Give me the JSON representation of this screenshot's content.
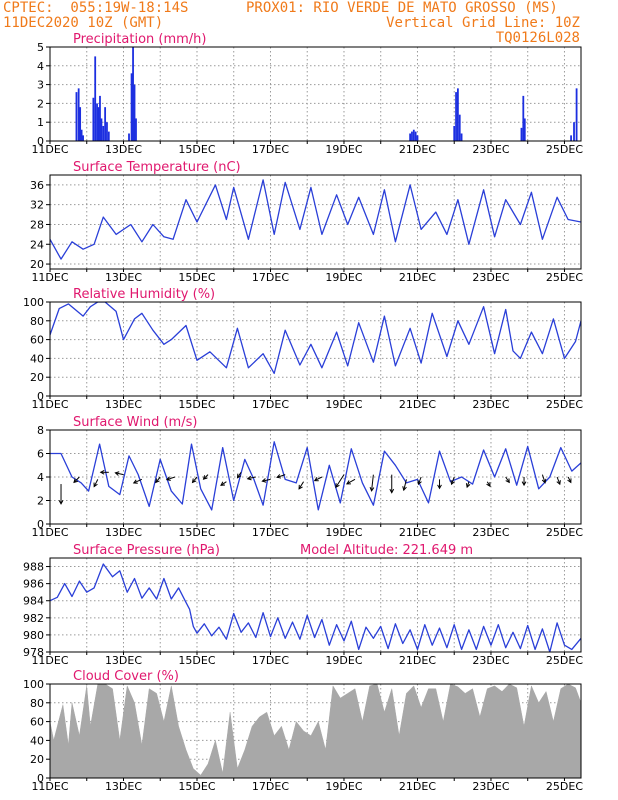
{
  "header": {
    "left_line1": "CPTEC:  055:19W-18:14S",
    "center_line1": "PROX01: RIO VERDE DE MATO GROSSO (MS)",
    "left_line2": "11DEC2020 10Z (GMT)",
    "right_line2": "Vertical Grid Line: 10Z",
    "right_line3": "TQ0126L028"
  },
  "colors": {
    "header": "#f07a1a",
    "title": "#e0186e",
    "line": "#2a3fd8",
    "bar": "#1c2fe0",
    "cloud": "#a8a8a8"
  },
  "x_tick_labels": [
    "11DEC",
    "13DEC",
    "15DEC",
    "17DEC",
    "19DEC",
    "21DEC",
    "23DEC",
    "25DEC"
  ],
  "chart_data": [
    {
      "type": "bar",
      "title": "Precipitation (mm/h)",
      "x_unit": "day since 11DEC 10Z",
      "ylim": [
        0,
        5
      ],
      "yticks": [
        0,
        1,
        2,
        3,
        4,
        5
      ],
      "points": [
        [
          0.72,
          2.6
        ],
        [
          0.78,
          2.8
        ],
        [
          0.82,
          1.8
        ],
        [
          0.86,
          0.6
        ],
        [
          0.9,
          0.3
        ],
        [
          1.18,
          2.3
        ],
        [
          1.23,
          4.5
        ],
        [
          1.28,
          2.0
        ],
        [
          1.32,
          1.8
        ],
        [
          1.36,
          2.4
        ],
        [
          1.4,
          1.2
        ],
        [
          1.45,
          0.8
        ],
        [
          1.5,
          1.8
        ],
        [
          1.55,
          1.0
        ],
        [
          1.6,
          0.5
        ],
        [
          2.15,
          0.4
        ],
        [
          2.22,
          3.6
        ],
        [
          2.26,
          5.0
        ],
        [
          2.3,
          3.0
        ],
        [
          2.34,
          1.2
        ],
        [
          9.8,
          0.4
        ],
        [
          9.85,
          0.5
        ],
        [
          9.9,
          0.6
        ],
        [
          9.95,
          0.5
        ],
        [
          10.0,
          0.3
        ],
        [
          11.0,
          0.8
        ],
        [
          11.05,
          2.6
        ],
        [
          11.1,
          2.8
        ],
        [
          11.15,
          1.4
        ],
        [
          11.2,
          0.4
        ],
        [
          12.83,
          0.7
        ],
        [
          12.88,
          2.4
        ],
        [
          12.92,
          1.2
        ],
        [
          14.18,
          0.3
        ],
        [
          14.26,
          1.0
        ],
        [
          14.33,
          2.8
        ]
      ]
    },
    {
      "type": "line",
      "title": "Surface Temperature (nC)",
      "ylim": [
        19,
        38
      ],
      "yticks": [
        20,
        24,
        28,
        32,
        36
      ],
      "x": [
        0,
        0.3,
        0.6,
        0.9,
        1.2,
        1.45,
        1.8,
        2.2,
        2.5,
        2.8,
        3.1,
        3.35,
        3.7,
        4.0,
        4.5,
        4.8,
        5.0,
        5.4,
        5.8,
        6.1,
        6.4,
        6.8,
        7.1,
        7.4,
        7.8,
        8.1,
        8.4,
        8.8,
        9.1,
        9.4,
        9.8,
        10.1,
        10.5,
        10.8,
        11.1,
        11.4,
        11.8,
        12.1,
        12.4,
        12.8,
        13.1,
        13.4,
        13.8,
        14.1,
        14.45
      ],
      "y": [
        25,
        21,
        24.5,
        23,
        24,
        29.5,
        26,
        28,
        24.5,
        28,
        25.5,
        25,
        33,
        28.5,
        36,
        29,
        35.5,
        25,
        37,
        26,
        36.5,
        27,
        35.5,
        26,
        34,
        28,
        33.5,
        26,
        35,
        24.5,
        36,
        27,
        30.5,
        26,
        33,
        24,
        35,
        25.5,
        33,
        28,
        34.5,
        25,
        33.5,
        29,
        28.5
      ]
    },
    {
      "type": "line",
      "title": "Relative Humidity (%)",
      "ylim": [
        0,
        100
      ],
      "yticks": [
        0,
        20,
        40,
        60,
        80,
        100
      ],
      "x": [
        0,
        0.25,
        0.5,
        0.9,
        1.1,
        1.3,
        1.5,
        1.8,
        2.0,
        2.3,
        2.5,
        2.8,
        3.1,
        3.3,
        3.7,
        4.0,
        4.35,
        4.8,
        5.1,
        5.4,
        5.8,
        6.1,
        6.4,
        6.8,
        7.1,
        7.4,
        7.8,
        8.1,
        8.4,
        8.8,
        9.1,
        9.4,
        9.8,
        10.1,
        10.4,
        10.8,
        11.1,
        11.4,
        11.8,
        12.1,
        12.4,
        12.6,
        12.8,
        13.1,
        13.4,
        13.7,
        14.0,
        14.3,
        14.45
      ],
      "y": [
        65,
        93,
        98,
        85,
        95,
        100,
        100,
        90,
        60,
        82,
        88,
        70,
        55,
        60,
        75,
        38,
        47,
        30,
        72,
        30,
        45,
        24,
        70,
        33,
        55,
        30,
        68,
        32,
        78,
        36,
        85,
        32,
        72,
        35,
        88,
        42,
        80,
        55,
        95,
        45,
        92,
        48,
        40,
        68,
        45,
        82,
        40,
        58,
        80
      ]
    },
    {
      "type": "line",
      "title": "Surface Wind (m/s)",
      "ylim": [
        0,
        8
      ],
      "yticks": [
        0,
        2,
        4,
        6,
        8
      ],
      "x": [
        0,
        0.3,
        0.6,
        0.85,
        1.05,
        1.35,
        1.6,
        1.9,
        2.15,
        2.4,
        2.7,
        3.0,
        3.3,
        3.6,
        3.85,
        4.1,
        4.4,
        4.7,
        5.0,
        5.3,
        5.55,
        5.8,
        6.1,
        6.4,
        6.7,
        7.0,
        7.3,
        7.6,
        7.9,
        8.2,
        8.5,
        8.8,
        9.1,
        9.4,
        9.7,
        10.0,
        10.3,
        10.6,
        10.9,
        11.2,
        11.5,
        11.8,
        12.1,
        12.4,
        12.7,
        13.0,
        13.3,
        13.6,
        13.9,
        14.2,
        14.45
      ],
      "y": [
        6,
        6,
        4,
        3.5,
        2.8,
        6.8,
        3.2,
        2.5,
        5.8,
        4.2,
        1.5,
        5.5,
        2.8,
        1.7,
        6.8,
        3,
        1.2,
        6.5,
        2,
        5.5,
        3.8,
        1.6,
        7,
        3.8,
        3.5,
        6.5,
        1.2,
        5,
        1.8,
        6.4,
        3.5,
        1.6,
        6.2,
        5,
        3.5,
        3.8,
        1.8,
        6.2,
        3.6,
        4,
        3.4,
        6.3,
        4,
        6.4,
        3.3,
        6.6,
        3,
        4,
        6.5,
        4.5,
        5.2
      ],
      "arrows": [
        [
          0.3,
          3.4,
          0,
          -2.2
        ],
        [
          0.8,
          4.0,
          -0.6,
          -0.6
        ],
        [
          1.3,
          3.8,
          -0.4,
          -0.8
        ],
        [
          1.6,
          4.4,
          -0.9,
          0
        ],
        [
          2.0,
          4.2,
          -0.9,
          0.2
        ],
        [
          2.5,
          3.8,
          -0.9,
          -0.4
        ],
        [
          3.0,
          4.0,
          -0.5,
          -0.6
        ],
        [
          3.4,
          4.0,
          -0.9,
          -0.3
        ],
        [
          4.0,
          4.0,
          -0.5,
          -0.6
        ],
        [
          4.3,
          4.2,
          -0.5,
          -0.5
        ],
        [
          4.8,
          3.6,
          -0.6,
          -0.4
        ],
        [
          5.2,
          4.4,
          -0.4,
          -0.6
        ],
        [
          5.6,
          4.0,
          -0.9,
          -0.2
        ],
        [
          6.0,
          3.8,
          -0.9,
          -0.2
        ],
        [
          6.4,
          4.2,
          -0.9,
          -0.3
        ],
        [
          6.9,
          3.6,
          -0.5,
          -0.8
        ],
        [
          7.4,
          4.0,
          -0.8,
          -0.4
        ],
        [
          8.0,
          4.2,
          -0.9,
          -1.4
        ],
        [
          8.3,
          3.8,
          -0.9,
          -0.5
        ],
        [
          8.8,
          4.2,
          -0.2,
          -1.8
        ],
        [
          9.3,
          4.2,
          0,
          -2.0
        ],
        [
          9.7,
          3.8,
          -0.3,
          -1.2
        ],
        [
          10.1,
          4.0,
          -0.3,
          -0.8
        ],
        [
          10.6,
          3.8,
          0,
          -1.0
        ],
        [
          11.0,
          4.0,
          -0.3,
          -0.8
        ],
        [
          11.4,
          3.6,
          -0.2,
          -0.6
        ],
        [
          11.9,
          3.6,
          0.3,
          -0.5
        ],
        [
          12.4,
          4.0,
          0.4,
          -0.6
        ],
        [
          12.9,
          4.0,
          0,
          -0.9
        ],
        [
          13.4,
          4.2,
          0.3,
          -0.9
        ],
        [
          13.8,
          4.0,
          0.3,
          -0.8
        ],
        [
          14.1,
          4.0,
          0.3,
          -0.6
        ]
      ]
    },
    {
      "type": "line",
      "title": "Surface Pressure (hPa)",
      "annotation": "Model Altitude: 221.649  m",
      "ylim": [
        978,
        989
      ],
      "yticks": [
        978,
        980,
        982,
        984,
        986,
        988
      ],
      "x": [
        0,
        0.2,
        0.4,
        0.6,
        0.8,
        1.0,
        1.2,
        1.45,
        1.7,
        1.9,
        2.1,
        2.3,
        2.5,
        2.7,
        2.9,
        3.1,
        3.3,
        3.5,
        3.7,
        3.8,
        3.9,
        4.0,
        4.2,
        4.4,
        4.6,
        4.8,
        5.0,
        5.2,
        5.4,
        5.6,
        5.8,
        6.0,
        6.2,
        6.4,
        6.6,
        6.8,
        7.0,
        7.2,
        7.4,
        7.6,
        7.8,
        8.0,
        8.2,
        8.4,
        8.6,
        8.8,
        9.0,
        9.2,
        9.4,
        9.6,
        9.8,
        10.0,
        10.2,
        10.4,
        10.6,
        10.8,
        11.0,
        11.2,
        11.4,
        11.6,
        11.8,
        12.0,
        12.2,
        12.4,
        12.6,
        12.8,
        13.0,
        13.2,
        13.4,
        13.6,
        13.8,
        14.0,
        14.2,
        14.45
      ],
      "y": [
        984,
        984.4,
        986,
        984.5,
        986.3,
        985,
        985.5,
        988.3,
        986.8,
        987.5,
        985,
        986.6,
        984.3,
        985.5,
        984.2,
        986.6,
        984.2,
        985.5,
        983.8,
        983,
        981,
        980.2,
        981.3,
        979.9,
        980.9,
        979.5,
        982.5,
        980.3,
        981.4,
        979.7,
        982.6,
        979.8,
        982,
        979.6,
        981.5,
        979.5,
        982.3,
        979.7,
        981.8,
        978.8,
        981.2,
        979.3,
        981.6,
        978.3,
        980.9,
        979.6,
        981,
        978.4,
        981.3,
        979,
        980.6,
        978.3,
        981.2,
        978.8,
        980.8,
        978.5,
        981.2,
        978.3,
        980.6,
        978.3,
        981,
        978.8,
        981.2,
        978.5,
        980.3,
        978.4,
        981.1,
        978.3,
        980.7,
        978,
        981.4,
        978.8,
        978.3,
        979.6
      ]
    },
    {
      "type": "area",
      "title": "Cloud Cover (%)",
      "ylim": [
        0,
        100
      ],
      "yticks": [
        0,
        20,
        40,
        60,
        80,
        100
      ],
      "x": [
        0,
        0.1,
        0.2,
        0.35,
        0.5,
        0.6,
        0.8,
        1.0,
        1.1,
        1.3,
        1.5,
        1.7,
        1.9,
        2.1,
        2.3,
        2.5,
        2.7,
        2.9,
        3.1,
        3.3,
        3.5,
        3.7,
        3.9,
        4.1,
        4.3,
        4.5,
        4.7,
        4.9,
        5.1,
        5.3,
        5.5,
        5.7,
        5.9,
        6.1,
        6.3,
        6.5,
        6.7,
        6.9,
        7.1,
        7.3,
        7.5,
        7.7,
        7.9,
        8.1,
        8.3,
        8.5,
        8.7,
        8.9,
        9.1,
        9.3,
        9.5,
        9.7,
        9.9,
        10.1,
        10.3,
        10.5,
        10.7,
        10.9,
        11.1,
        11.3,
        11.5,
        11.7,
        11.9,
        12.1,
        12.3,
        12.5,
        12.7,
        12.9,
        13.1,
        13.3,
        13.5,
        13.7,
        13.9,
        14.1,
        14.3,
        14.45
      ],
      "y": [
        60,
        40,
        55,
        78,
        35,
        80,
        45,
        98,
        55,
        100,
        100,
        95,
        40,
        98,
        80,
        35,
        95,
        90,
        60,
        98,
        55,
        30,
        10,
        3,
        15,
        40,
        5,
        70,
        10,
        30,
        55,
        65,
        70,
        45,
        55,
        30,
        60,
        50,
        45,
        60,
        30,
        98,
        85,
        90,
        95,
        60,
        98,
        100,
        70,
        95,
        45,
        90,
        98,
        75,
        95,
        95,
        60,
        100,
        97,
        90,
        95,
        65,
        95,
        98,
        92,
        100,
        96,
        55,
        98,
        80,
        92,
        60,
        95,
        100,
        96,
        80
      ]
    }
  ]
}
